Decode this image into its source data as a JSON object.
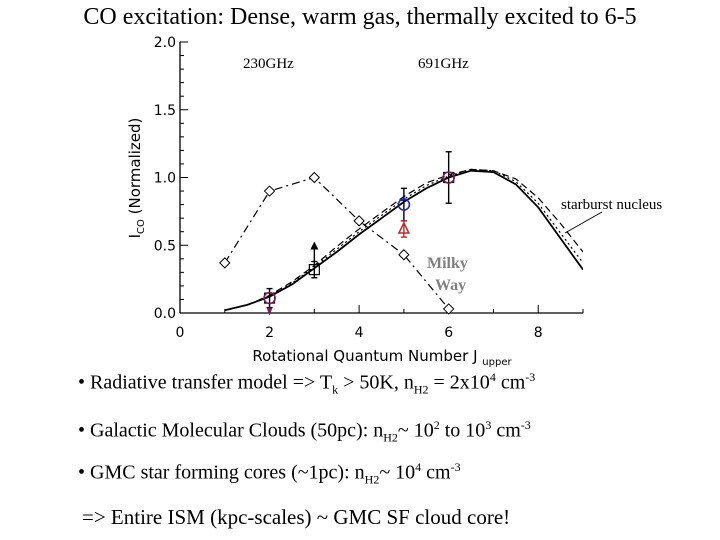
{
  "slide": {
    "title": "CO excitation: Dense, warm gas, thermally excited to 6-5"
  },
  "colors": {
    "background": "#ffffff",
    "text": "#000000",
    "milky_way_label": "#808080",
    "blue_marker": "#1f2bb8",
    "red_marker": "#c0282a",
    "purple_marker": "#7a1f56"
  },
  "chart_data": {
    "type": "line",
    "title": "",
    "xlabel": "Rotational Quantum Number J",
    "xlabel_sub": "upper",
    "ylabel": "I",
    "ylabel_sub": "CO",
    "ylabel_tail": "(Normalized)",
    "xlim": [
      0,
      9
    ],
    "ylim": [
      0,
      2.0
    ],
    "xticks": [
      0,
      2,
      4,
      6,
      8
    ],
    "yticks": [
      0.0,
      0.5,
      1.0,
      1.5,
      2.0
    ],
    "ytick_labels": [
      "0.0",
      "0.5",
      "1.0",
      "1.5",
      "2.0"
    ],
    "annotations": {
      "freq_230": "230GHz",
      "freq_691": "691GHz",
      "starburst": "starburst nucleus",
      "milky_way_1": "Milky",
      "milky_way_2": "Way"
    },
    "series": [
      {
        "name": "model_solid",
        "style": "solid",
        "x": [
          1,
          1.5,
          2,
          2.5,
          3,
          3.5,
          4,
          4.5,
          5,
          5.5,
          6,
          6.5,
          7,
          7.5,
          8,
          8.5,
          9
        ],
        "y": [
          0.02,
          0.06,
          0.12,
          0.21,
          0.33,
          0.45,
          0.58,
          0.7,
          0.82,
          0.92,
          1.0,
          1.05,
          1.04,
          0.95,
          0.78,
          0.55,
          0.32
        ]
      },
      {
        "name": "model_dotted",
        "style": "dotted",
        "x": [
          1,
          1.5,
          2,
          2.5,
          3,
          3.5,
          4,
          4.5,
          5,
          5.5,
          6,
          6.5,
          7,
          7.5,
          8,
          8.5,
          9
        ],
        "y": [
          0.02,
          0.06,
          0.12,
          0.22,
          0.34,
          0.47,
          0.6,
          0.72,
          0.84,
          0.94,
          1.01,
          1.06,
          1.05,
          0.97,
          0.81,
          0.59,
          0.37
        ]
      },
      {
        "name": "model_dashed",
        "style": "dashed",
        "x": [
          1,
          1.5,
          2,
          2.5,
          3,
          3.5,
          4,
          4.5,
          5,
          5.5,
          6,
          6.5,
          7,
          7.5,
          8,
          8.5,
          9
        ],
        "y": [
          0.02,
          0.06,
          0.13,
          0.23,
          0.35,
          0.49,
          0.62,
          0.74,
          0.86,
          0.96,
          1.02,
          1.06,
          1.05,
          0.99,
          0.85,
          0.66,
          0.45
        ]
      },
      {
        "name": "Milky Way",
        "style": "dash-dot",
        "marker": "diamond",
        "x": [
          1,
          2,
          3,
          4,
          5,
          6
        ],
        "y": [
          0.37,
          0.9,
          1.0,
          0.68,
          0.43,
          0.03
        ]
      }
    ],
    "points": [
      {
        "name": "j2-data",
        "marker": "square-circle",
        "x": 2,
        "y": 0.11,
        "yerr": 0.07,
        "color": "purple"
      },
      {
        "name": "j3-data",
        "marker": "square",
        "x": 3,
        "y": 0.32,
        "yerr": 0.06,
        "upper_arrow": true,
        "color": "black"
      },
      {
        "name": "j5-blue",
        "marker": "circle",
        "x": 5,
        "y": 0.8,
        "yerr": 0.12,
        "color": "blue"
      },
      {
        "name": "j5-red",
        "marker": "triangle",
        "x": 5,
        "y": 0.62,
        "yerr": 0.06,
        "color": "red"
      },
      {
        "name": "j6-data",
        "marker": "square-circle",
        "x": 6,
        "y": 1.0,
        "yerr": 0.19,
        "color": "purple"
      }
    ]
  },
  "bullets": [
    {
      "pre": "• Radiative transfer model => T",
      "sub1": "k",
      "mid1": " > 50K,  n",
      "sub2": "H2",
      "mid2": " = 2x10",
      "sup1": "4",
      "mid3": " cm",
      "sup2": "-3"
    },
    {
      "pre": "• Galactic Molecular Clouds (50pc): n",
      "sub1": "H2",
      "mid1": "~ 10",
      "sup1": "2",
      "mid2": " to 10",
      "sup2": "3",
      "mid3": " cm",
      "sup3": "-3"
    },
    {
      "pre": "• GMC star forming cores (~1pc): n",
      "sub1": "H2",
      "mid1": "~ 10",
      "sup1": "4",
      "mid2": " cm",
      "sup2": "-3"
    }
  ],
  "conclusion": "=> Entire ISM (kpc-scales) ~ GMC SF cloud core!"
}
